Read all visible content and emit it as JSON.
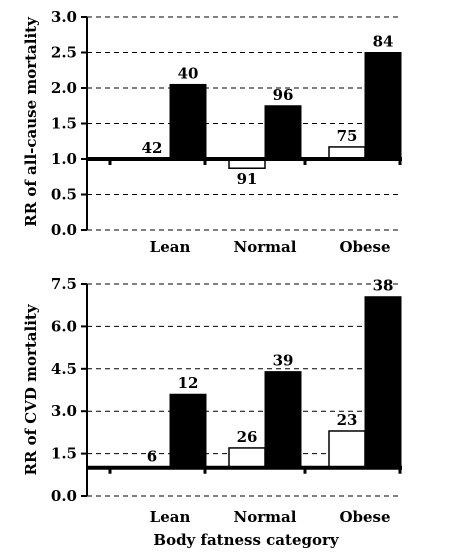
{
  "chart_data": [
    {
      "type": "bar",
      "title": "",
      "xlabel": "",
      "ylabel": "RR of all-cause mortality",
      "ylim": [
        0,
        3.0
      ],
      "baseline": 1.0,
      "yticks": [
        "0.0",
        "0.5",
        "1.0",
        "1.5",
        "2.0",
        "2.5",
        "3.0"
      ],
      "grid": true,
      "categories": [
        "Lean",
        "Normal",
        "Obese"
      ],
      "series": [
        {
          "fill": "#ffffff",
          "values": [
            1.0,
            0.87,
            1.17
          ],
          "labels": [
            "42",
            "91",
            "75"
          ]
        },
        {
          "fill": "#000000",
          "values": [
            2.05,
            1.75,
            2.5
          ],
          "labels": [
            "40",
            "96",
            "84"
          ]
        }
      ]
    },
    {
      "type": "bar",
      "title": "",
      "xlabel": "Body fatness category",
      "ylabel": "RR of CVD mortality",
      "ylim": [
        0,
        7.5
      ],
      "baseline": 1.0,
      "yticks": [
        "0.0",
        "1.5",
        "3.0",
        "4.5",
        "6.0",
        "7.5"
      ],
      "grid": true,
      "categories": [
        "Lean",
        "Normal",
        "Obese"
      ],
      "series": [
        {
          "fill": "#ffffff",
          "values": [
            1.0,
            1.7,
            2.3
          ],
          "labels": [
            "6",
            "26",
            "23"
          ]
        },
        {
          "fill": "#000000",
          "values": [
            3.6,
            4.4,
            7.05
          ],
          "labels": [
            "12",
            "39",
            "38"
          ]
        }
      ]
    }
  ]
}
